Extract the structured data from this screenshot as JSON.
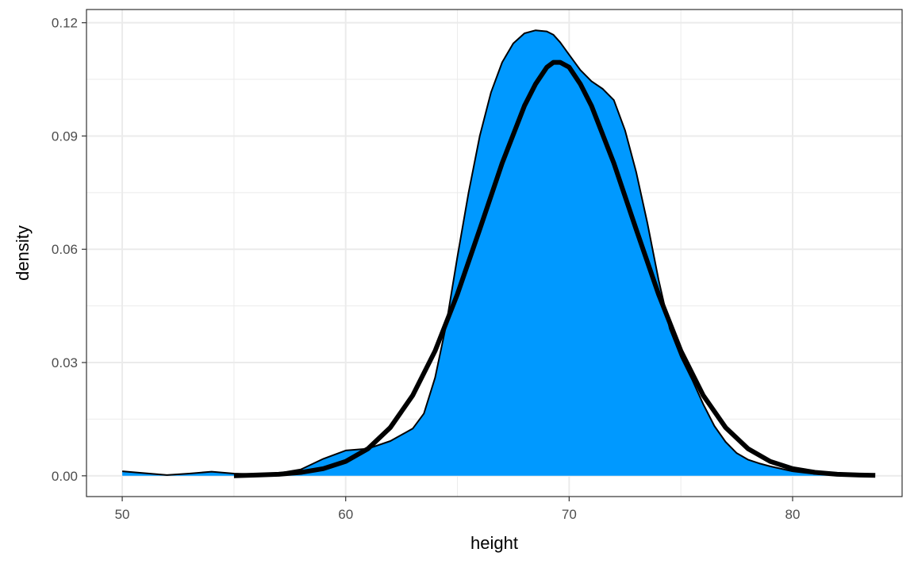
{
  "chart_data": {
    "type": "area",
    "title": "",
    "xlabel": "height",
    "ylabel": "density",
    "xlim": [
      48.4,
      84.9
    ],
    "ylim": [
      -0.0055,
      0.1235
    ],
    "x_ticks": [
      50,
      60,
      70,
      80
    ],
    "x_tick_labels": [
      "50",
      "60",
      "70",
      "80"
    ],
    "y_ticks": [
      0.0,
      0.03,
      0.06,
      0.09,
      0.12
    ],
    "y_tick_labels": [
      "0.00",
      "0.03",
      "0.06",
      "0.09",
      "0.12"
    ],
    "grid": true,
    "legend": "none",
    "series": [
      {
        "kind": "density-area",
        "fill": "#0099ff",
        "stroke": "#000000",
        "x": [
          50.0,
          51.0,
          52.0,
          53.0,
          54.0,
          55.0,
          56.0,
          57.0,
          58.0,
          59.0,
          60.0,
          61.0,
          62.0,
          63.0,
          63.5,
          64.0,
          64.5,
          65.0,
          65.5,
          66.0,
          66.5,
          67.0,
          67.5,
          68.0,
          68.5,
          69.0,
          69.3,
          69.6,
          70.0,
          70.5,
          71.0,
          71.5,
          72.0,
          72.5,
          73.0,
          73.5,
          74.0,
          74.5,
          75.0,
          75.5,
          76.0,
          76.5,
          77.0,
          77.5,
          78.0,
          78.5,
          79.0,
          80.0,
          81.0,
          82.0,
          82.5
        ],
        "y": [
          0.0012,
          0.0007,
          0.0002,
          0.0006,
          0.0011,
          0.0006,
          0.0004,
          0.0007,
          0.0017,
          0.0045,
          0.0067,
          0.0072,
          0.0092,
          0.0125,
          0.0165,
          0.026,
          0.04,
          0.058,
          0.075,
          0.09,
          0.1015,
          0.1095,
          0.1145,
          0.1172,
          0.118,
          0.1177,
          0.1168,
          0.1148,
          0.1115,
          0.1075,
          0.1045,
          0.1025,
          0.0995,
          0.0915,
          0.0805,
          0.067,
          0.052,
          0.039,
          0.0315,
          0.0255,
          0.019,
          0.0132,
          0.009,
          0.006,
          0.0043,
          0.0033,
          0.0025,
          0.0012,
          0.0005,
          0.0002,
          0.0001
        ]
      },
      {
        "kind": "normal-curve",
        "stroke": "#000000",
        "x": [
          55.0,
          56.0,
          57.0,
          58.0,
          59.0,
          60.0,
          61.0,
          62.0,
          63.0,
          64.0,
          65.0,
          66.0,
          67.0,
          68.0,
          68.5,
          69.0,
          69.3,
          69.6,
          70.0,
          70.5,
          71.0,
          72.0,
          73.0,
          74.0,
          75.0,
          76.0,
          77.0,
          78.0,
          79.0,
          80.0,
          81.0,
          82.0,
          83.0,
          83.7
        ],
        "y": [
          0.0,
          0.0002,
          0.0004,
          0.0009,
          0.0019,
          0.0038,
          0.0072,
          0.0128,
          0.0213,
          0.0331,
          0.0481,
          0.0653,
          0.0828,
          0.098,
          0.1038,
          0.1082,
          0.1095,
          0.1095,
          0.1082,
          0.1038,
          0.098,
          0.0828,
          0.0653,
          0.0481,
          0.0331,
          0.0213,
          0.0128,
          0.0072,
          0.0038,
          0.0019,
          0.0009,
          0.0004,
          0.0002,
          0.0001
        ]
      }
    ]
  }
}
